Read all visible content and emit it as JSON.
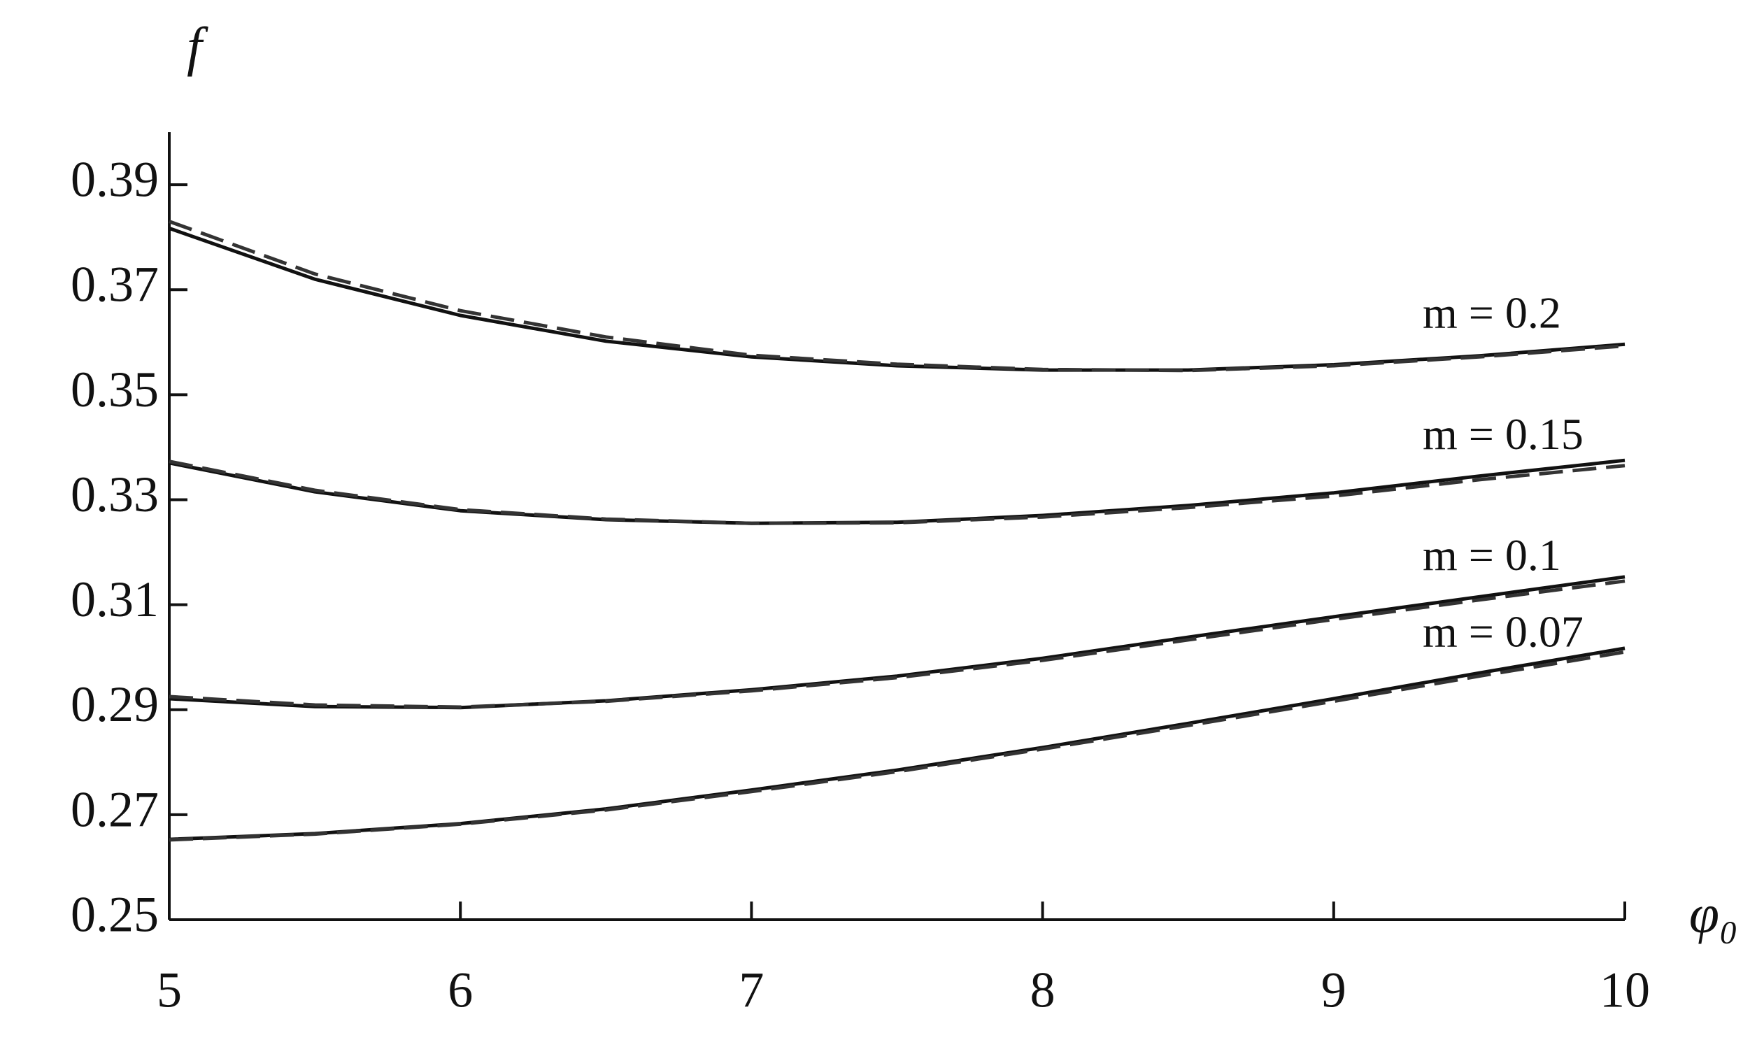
{
  "chart_data": {
    "type": "line",
    "y_label": "f",
    "x_label": "φ₀",
    "x": [
      5,
      5.5,
      6,
      6.5,
      7,
      7.5,
      8,
      8.5,
      9,
      9.5,
      10
    ],
    "series": [
      {
        "name": "m = 0.2",
        "color": "#111111",
        "style": "solid",
        "values": [
          0.3817,
          0.372,
          0.3651,
          0.3602,
          0.3572,
          0.3555,
          0.3547,
          0.3547,
          0.3557,
          0.3574,
          0.3596
        ]
      },
      {
        "color": "#333333",
        "style": "dashed",
        "values": [
          0.383,
          0.373,
          0.366,
          0.361,
          0.3575,
          0.3558,
          0.3548,
          0.3546,
          0.3555,
          0.3572,
          0.3593
        ]
      },
      {
        "name": "m = 0.15",
        "color": "#111111",
        "style": "solid",
        "values": [
          0.337,
          0.3315,
          0.3279,
          0.3262,
          0.3255,
          0.3257,
          0.327,
          0.3289,
          0.3313,
          0.3345,
          0.3375
        ]
      },
      {
        "color": "#333333",
        "style": "dashed",
        "values": [
          0.3373,
          0.3318,
          0.3281,
          0.3263,
          0.3255,
          0.3256,
          0.3267,
          0.3285,
          0.3307,
          0.3338,
          0.3365
        ]
      },
      {
        "name": "m = 0.1",
        "color": "#111111",
        "style": "solid",
        "values": [
          0.2921,
          0.2906,
          0.2904,
          0.2917,
          0.2938,
          0.2964,
          0.2998,
          0.3038,
          0.3077,
          0.3115,
          0.3153
        ]
      },
      {
        "color": "#333333",
        "style": "dashed",
        "values": [
          0.2925,
          0.2909,
          0.2905,
          0.2916,
          0.2936,
          0.2961,
          0.2994,
          0.3033,
          0.3072,
          0.3109,
          0.3145
        ]
      },
      {
        "name": "m = 0.07",
        "color": "#111111",
        "style": "solid",
        "values": [
          0.2653,
          0.2664,
          0.2683,
          0.2711,
          0.2747,
          0.2785,
          0.2828,
          0.2874,
          0.2921,
          0.297,
          0.3017
        ]
      },
      {
        "color": "#333333",
        "style": "dashed",
        "values": [
          0.2652,
          0.2663,
          0.2682,
          0.2709,
          0.2744,
          0.2782,
          0.2825,
          0.287,
          0.2916,
          0.2964,
          0.301
        ]
      }
    ],
    "xlim": [
      5,
      10
    ],
    "xticks": [
      5,
      6,
      7,
      8,
      9,
      10
    ],
    "ylim": [
      0.25,
      0.4
    ],
    "yticks": [
      0.25,
      0.27,
      0.29,
      0.31,
      0.33,
      0.35,
      0.37,
      0.39
    ],
    "grid": false
  }
}
